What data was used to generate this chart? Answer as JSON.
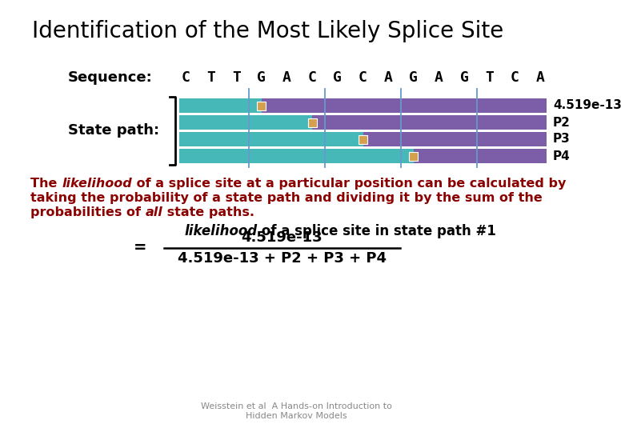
{
  "title": "Identification of the Most Likely Splice Site",
  "bg_color": "#ffffff",
  "sequence": [
    "C",
    "T",
    "T",
    "G",
    "A",
    "C",
    "G",
    "C",
    "A",
    "G",
    "A",
    "G",
    "T",
    "C",
    "A"
  ],
  "sequence_label": "Sequence:",
  "state_path_label": "State path:",
  "bar_labels": [
    "4.519e-13",
    "P2",
    "P3",
    "P4"
  ],
  "teal_color": "#47b8b8",
  "purple_color": "#7b5ea7",
  "splice_color": "#d4a050",
  "text_color": "#8B0000",
  "black": "#000000",
  "vline_color": "#6699cc",
  "numerator": "4.519e-13",
  "denominator": "4.519e-13 + P2 + P3 + P4",
  "footer": "Weisstein et al  A Hands-on Introduction to\nHidden Markov Models"
}
